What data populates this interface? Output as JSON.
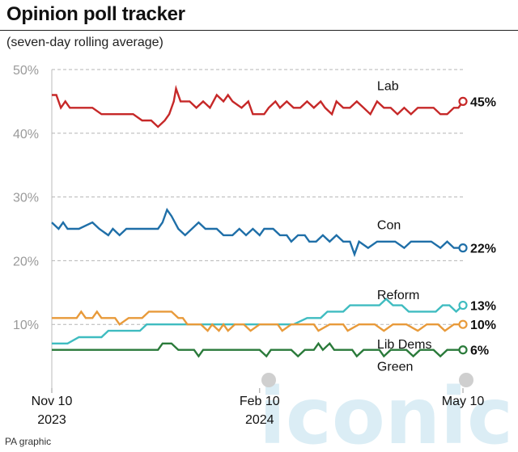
{
  "header": {
    "title": "Opinion poll tracker",
    "subtitle": "(seven-day rolling average)"
  },
  "footer": {
    "credit": "PA graphic"
  },
  "watermark": {
    "text": "iconic"
  },
  "colors": {
    "Lab": "#c62828",
    "Con": "#1f6fa8",
    "Reform": "#3fbcc0",
    "Lib Dems": "#e89a3a",
    "Green": "#2a7a3a",
    "grid": "#b5b5b5",
    "axis_text": "#9a9a9a"
  },
  "chart_data": {
    "type": "line",
    "title": "Opinion poll tracker",
    "subtitle": "(seven-day rolling average)",
    "ylim": [
      0,
      50
    ],
    "y_ticks": [
      10,
      20,
      30,
      40,
      50
    ],
    "y_tick_labels": [
      "10%",
      "20%",
      "30%",
      "40%",
      "50%"
    ],
    "x_range": [
      "2023-11-10",
      "2024-05-10"
    ],
    "x_ticks": [
      {
        "date": "2023-11-10",
        "line1": "Nov 10",
        "line2": "2023"
      },
      {
        "date": "2024-02-10",
        "line1": "Feb 10",
        "line2": "2024"
      },
      {
        "date": "2024-05-10",
        "line1": "May 10",
        "line2": ""
      }
    ],
    "grid": "horizontal-dashed",
    "series": [
      {
        "name": "Lab",
        "final_label": "45%",
        "points": [
          [
            "2023-11-10",
            46
          ],
          [
            "2023-11-12",
            46
          ],
          [
            "2023-11-14",
            44
          ],
          [
            "2023-11-16",
            45
          ],
          [
            "2023-11-18",
            44
          ],
          [
            "2023-11-22",
            44
          ],
          [
            "2023-11-28",
            44
          ],
          [
            "2023-12-02",
            43
          ],
          [
            "2023-12-10",
            43
          ],
          [
            "2023-12-16",
            43
          ],
          [
            "2023-12-20",
            42
          ],
          [
            "2023-12-24",
            42
          ],
          [
            "2023-12-27",
            41
          ],
          [
            "2023-12-30",
            42
          ],
          [
            "2024-01-01",
            43
          ],
          [
            "2024-01-03",
            45
          ],
          [
            "2024-01-04",
            47
          ],
          [
            "2024-01-06",
            45
          ],
          [
            "2024-01-10",
            45
          ],
          [
            "2024-01-13",
            44
          ],
          [
            "2024-01-16",
            45
          ],
          [
            "2024-01-19",
            44
          ],
          [
            "2024-01-22",
            46
          ],
          [
            "2024-01-25",
            45
          ],
          [
            "2024-01-27",
            46
          ],
          [
            "2024-01-29",
            45
          ],
          [
            "2024-02-02",
            44
          ],
          [
            "2024-02-05",
            45
          ],
          [
            "2024-02-07",
            43
          ],
          [
            "2024-02-12",
            43
          ],
          [
            "2024-02-14",
            44
          ],
          [
            "2024-02-17",
            45
          ],
          [
            "2024-02-19",
            44
          ],
          [
            "2024-02-22",
            45
          ],
          [
            "2024-02-25",
            44
          ],
          [
            "2024-02-28",
            44
          ],
          [
            "2024-03-02",
            45
          ],
          [
            "2024-03-05",
            44
          ],
          [
            "2024-03-08",
            45
          ],
          [
            "2024-03-10",
            44
          ],
          [
            "2024-03-13",
            43
          ],
          [
            "2024-03-15",
            45
          ],
          [
            "2024-03-18",
            44
          ],
          [
            "2024-03-21",
            44
          ],
          [
            "2024-03-24",
            45
          ],
          [
            "2024-03-27",
            44
          ],
          [
            "2024-03-30",
            43
          ],
          [
            "2024-04-02",
            45
          ],
          [
            "2024-04-05",
            44
          ],
          [
            "2024-04-08",
            44
          ],
          [
            "2024-04-11",
            43
          ],
          [
            "2024-04-14",
            44
          ],
          [
            "2024-04-17",
            43
          ],
          [
            "2024-04-20",
            44
          ],
          [
            "2024-04-24",
            44
          ],
          [
            "2024-04-27",
            44
          ],
          [
            "2024-04-30",
            43
          ],
          [
            "2024-05-03",
            43
          ],
          [
            "2024-05-06",
            44
          ],
          [
            "2024-05-08",
            44
          ],
          [
            "2024-05-10",
            45
          ]
        ]
      },
      {
        "name": "Con",
        "final_label": "22%",
        "points": [
          [
            "2023-11-10",
            26
          ],
          [
            "2023-11-13",
            25
          ],
          [
            "2023-11-15",
            26
          ],
          [
            "2023-11-17",
            25
          ],
          [
            "2023-11-22",
            25
          ],
          [
            "2023-11-28",
            26
          ],
          [
            "2023-12-01",
            25
          ],
          [
            "2023-12-05",
            24
          ],
          [
            "2023-12-07",
            25
          ],
          [
            "2023-12-10",
            24
          ],
          [
            "2023-12-13",
            25
          ],
          [
            "2023-12-20",
            25
          ],
          [
            "2023-12-27",
            25
          ],
          [
            "2023-12-29",
            26
          ],
          [
            "2023-12-31",
            28
          ],
          [
            "2024-01-02",
            27
          ],
          [
            "2024-01-05",
            25
          ],
          [
            "2024-01-08",
            24
          ],
          [
            "2024-01-11",
            25
          ],
          [
            "2024-01-14",
            26
          ],
          [
            "2024-01-17",
            25
          ],
          [
            "2024-01-22",
            25
          ],
          [
            "2024-01-25",
            24
          ],
          [
            "2024-01-29",
            24
          ],
          [
            "2024-02-01",
            25
          ],
          [
            "2024-02-04",
            24
          ],
          [
            "2024-02-07",
            25
          ],
          [
            "2024-02-10",
            24
          ],
          [
            "2024-02-12",
            25
          ],
          [
            "2024-02-16",
            25
          ],
          [
            "2024-02-19",
            24
          ],
          [
            "2024-02-22",
            24
          ],
          [
            "2024-02-24",
            23
          ],
          [
            "2024-02-27",
            24
          ],
          [
            "2024-03-01",
            24
          ],
          [
            "2024-03-03",
            23
          ],
          [
            "2024-03-06",
            23
          ],
          [
            "2024-03-09",
            24
          ],
          [
            "2024-03-12",
            23
          ],
          [
            "2024-03-15",
            24
          ],
          [
            "2024-03-18",
            23
          ],
          [
            "2024-03-21",
            23
          ],
          [
            "2024-03-23",
            21
          ],
          [
            "2024-03-25",
            23
          ],
          [
            "2024-03-29",
            22
          ],
          [
            "2024-04-02",
            23
          ],
          [
            "2024-04-06",
            23
          ],
          [
            "2024-04-10",
            23
          ],
          [
            "2024-04-14",
            22
          ],
          [
            "2024-04-17",
            23
          ],
          [
            "2024-04-21",
            23
          ],
          [
            "2024-04-26",
            23
          ],
          [
            "2024-04-30",
            22
          ],
          [
            "2024-05-03",
            23
          ],
          [
            "2024-05-06",
            22
          ],
          [
            "2024-05-10",
            22
          ]
        ]
      },
      {
        "name": "Reform",
        "final_label": "13%",
        "points": [
          [
            "2023-11-10",
            7
          ],
          [
            "2023-11-17",
            7
          ],
          [
            "2023-11-22",
            8
          ],
          [
            "2023-12-02",
            8
          ],
          [
            "2023-12-05",
            9
          ],
          [
            "2023-12-15",
            9
          ],
          [
            "2023-12-19",
            9
          ],
          [
            "2023-12-22",
            10
          ],
          [
            "2024-01-05",
            10
          ],
          [
            "2024-01-15",
            10
          ],
          [
            "2024-02-15",
            10
          ],
          [
            "2024-02-25",
            10
          ],
          [
            "2024-03-02",
            11
          ],
          [
            "2024-03-08",
            11
          ],
          [
            "2024-03-11",
            12
          ],
          [
            "2024-03-18",
            12
          ],
          [
            "2024-03-21",
            13
          ],
          [
            "2024-03-28",
            13
          ],
          [
            "2024-04-03",
            13
          ],
          [
            "2024-04-06",
            14
          ],
          [
            "2024-04-09",
            13
          ],
          [
            "2024-04-13",
            13
          ],
          [
            "2024-04-16",
            12
          ],
          [
            "2024-04-23",
            12
          ],
          [
            "2024-04-28",
            12
          ],
          [
            "2024-05-01",
            13
          ],
          [
            "2024-05-04",
            13
          ],
          [
            "2024-05-07",
            12
          ],
          [
            "2024-05-10",
            13
          ]
        ]
      },
      {
        "name": "Lib Dems",
        "final_label": "10%",
        "points": [
          [
            "2023-11-10",
            11
          ],
          [
            "2023-11-21",
            11
          ],
          [
            "2023-11-23",
            12
          ],
          [
            "2023-11-25",
            11
          ],
          [
            "2023-11-28",
            11
          ],
          [
            "2023-11-30",
            12
          ],
          [
            "2023-12-02",
            11
          ],
          [
            "2023-12-08",
            11
          ],
          [
            "2023-12-10",
            10
          ],
          [
            "2023-12-14",
            11
          ],
          [
            "2023-12-20",
            11
          ],
          [
            "2023-12-23",
            12
          ],
          [
            "2024-01-02",
            12
          ],
          [
            "2024-01-05",
            11
          ],
          [
            "2024-01-07",
            11
          ],
          [
            "2024-01-09",
            10
          ],
          [
            "2024-01-15",
            10
          ],
          [
            "2024-01-18",
            9
          ],
          [
            "2024-01-20",
            10
          ],
          [
            "2024-01-23",
            9
          ],
          [
            "2024-01-25",
            10
          ],
          [
            "2024-01-27",
            9
          ],
          [
            "2024-01-30",
            10
          ],
          [
            "2024-02-03",
            10
          ],
          [
            "2024-02-06",
            9
          ],
          [
            "2024-02-10",
            10
          ],
          [
            "2024-02-14",
            10
          ],
          [
            "2024-02-18",
            10
          ],
          [
            "2024-02-20",
            9
          ],
          [
            "2024-02-24",
            10
          ],
          [
            "2024-03-01",
            10
          ],
          [
            "2024-03-05",
            10
          ],
          [
            "2024-03-07",
            9
          ],
          [
            "2024-03-12",
            10
          ],
          [
            "2024-03-18",
            10
          ],
          [
            "2024-03-20",
            9
          ],
          [
            "2024-03-25",
            10
          ],
          [
            "2024-04-01",
            10
          ],
          [
            "2024-04-05",
            9
          ],
          [
            "2024-04-09",
            10
          ],
          [
            "2024-04-15",
            10
          ],
          [
            "2024-04-20",
            9
          ],
          [
            "2024-04-24",
            10
          ],
          [
            "2024-04-29",
            10
          ],
          [
            "2024-05-02",
            9
          ],
          [
            "2024-05-06",
            10
          ],
          [
            "2024-05-10",
            10
          ]
        ]
      },
      {
        "name": "Green",
        "final_label": "6%",
        "points": [
          [
            "2023-11-10",
            6
          ],
          [
            "2023-11-22",
            6
          ],
          [
            "2023-12-10",
            6
          ],
          [
            "2023-12-27",
            6
          ],
          [
            "2023-12-29",
            7
          ],
          [
            "2024-01-02",
            7
          ],
          [
            "2024-01-05",
            6
          ],
          [
            "2024-01-12",
            6
          ],
          [
            "2024-01-14",
            5
          ],
          [
            "2024-01-16",
            6
          ],
          [
            "2024-02-02",
            6
          ],
          [
            "2024-02-10",
            6
          ],
          [
            "2024-02-13",
            5
          ],
          [
            "2024-02-15",
            6
          ],
          [
            "2024-02-24",
            6
          ],
          [
            "2024-02-27",
            5
          ],
          [
            "2024-03-01",
            6
          ],
          [
            "2024-03-05",
            6
          ],
          [
            "2024-03-07",
            7
          ],
          [
            "2024-03-09",
            6
          ],
          [
            "2024-03-12",
            7
          ],
          [
            "2024-03-14",
            6
          ],
          [
            "2024-03-22",
            6
          ],
          [
            "2024-03-24",
            5
          ],
          [
            "2024-03-27",
            6
          ],
          [
            "2024-04-03",
            6
          ],
          [
            "2024-04-05",
            5
          ],
          [
            "2024-04-08",
            6
          ],
          [
            "2024-04-15",
            6
          ],
          [
            "2024-04-18",
            5
          ],
          [
            "2024-04-21",
            6
          ],
          [
            "2024-04-27",
            6
          ],
          [
            "2024-04-30",
            5
          ],
          [
            "2024-05-03",
            6
          ],
          [
            "2024-05-10",
            6
          ]
        ]
      }
    ]
  }
}
